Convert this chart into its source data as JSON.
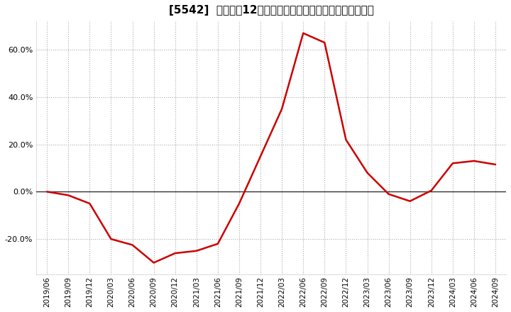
{
  "title": "[5542]  売上高の12か月移動合計の対前年同期増減率の推移",
  "line_color": "#cc0000",
  "bg_color": "#ffffff",
  "plot_bg_color": "#ffffff",
  "grid_color": "#aaaaaa",
  "zero_line_color": "#333333",
  "dates": [
    "2019/06",
    "2019/09",
    "2019/12",
    "2020/03",
    "2020/06",
    "2020/09",
    "2020/12",
    "2021/03",
    "2021/06",
    "2021/09",
    "2021/12",
    "2022/03",
    "2022/06",
    "2022/09",
    "2022/12",
    "2023/03",
    "2023/06",
    "2023/09",
    "2023/12",
    "2024/03",
    "2024/06",
    "2024/09"
  ],
  "values": [
    0.0,
    -1.5,
    -5.0,
    -20.0,
    -22.5,
    -30.0,
    -26.0,
    -25.0,
    -22.0,
    -5.0,
    15.0,
    35.0,
    67.0,
    63.0,
    22.0,
    8.0,
    -1.0,
    -4.0,
    0.5,
    12.0,
    13.0,
    11.5
  ],
  "yticks": [
    -20.0,
    0.0,
    20.0,
    40.0,
    60.0
  ],
  "ylim": [
    -35.0,
    72.0
  ],
  "xtick_labels": [
    "2019/06",
    "2019/09",
    "2019/12",
    "2020/03",
    "2020/06",
    "2020/09",
    "2020/12",
    "2021/03",
    "2021/06",
    "2021/09",
    "2021/12",
    "2022/03",
    "2022/06",
    "2022/09",
    "2022/12",
    "2023/03",
    "2023/06",
    "2023/09",
    "2023/12",
    "2024/03",
    "2024/06",
    "2024/09"
  ],
  "title_fontsize": 11,
  "tick_fontsize": 7.5,
  "ytick_fontsize": 8
}
